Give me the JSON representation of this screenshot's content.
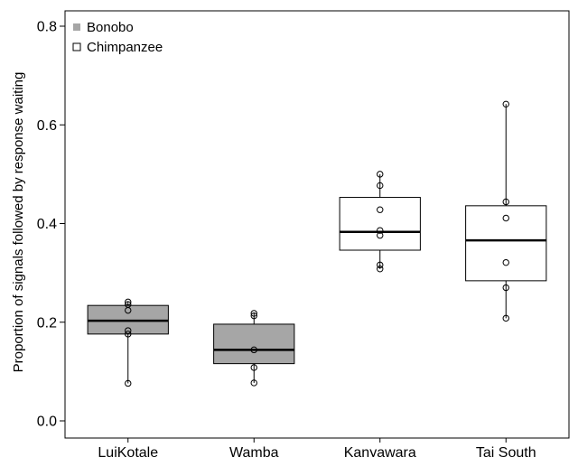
{
  "chart_data": {
    "type": "box",
    "ylabel": "Proportion of signals followed by response waiting",
    "xlabel": "",
    "ylim": [
      0,
      0.8
    ],
    "y_ticks": [
      0.0,
      0.2,
      0.4,
      0.6,
      0.8
    ],
    "y_tick_labels": [
      "0.0",
      "0.2",
      "0.4",
      "0.6",
      "0.8"
    ],
    "grid": false,
    "legend": {
      "placement": "top-left",
      "entries": [
        {
          "label": "Bonobo",
          "color": "#a6a6a6"
        },
        {
          "label": "Chimpanzee",
          "color": "#ffffff"
        }
      ]
    },
    "categories": [
      "LuiKotale",
      "Wamba",
      "Kanyawara",
      "Tai South"
    ],
    "boxes": [
      {
        "category": "LuiKotale",
        "species": "Bonobo",
        "fill": "#a6a6a6",
        "q1": 0.176,
        "median": 0.203,
        "q3": 0.234,
        "whisker_low": 0.076,
        "whisker_high": 0.241,
        "points": [
          0.076,
          0.176,
          0.183,
          0.224,
          0.236,
          0.241
        ]
      },
      {
        "category": "Wamba",
        "species": "Bonobo",
        "fill": "#a6a6a6",
        "q1": 0.116,
        "median": 0.144,
        "q3": 0.196,
        "whisker_low": 0.077,
        "whisker_high": 0.218,
        "points": [
          0.077,
          0.108,
          0.144,
          0.213,
          0.218
        ]
      },
      {
        "category": "Kanyawara",
        "species": "Chimpanzee",
        "fill": "#ffffff",
        "q1": 0.346,
        "median": 0.383,
        "q3": 0.453,
        "whisker_low": 0.308,
        "whisker_high": 0.5,
        "points": [
          0.308,
          0.316,
          0.376,
          0.386,
          0.428,
          0.477,
          0.5
        ]
      },
      {
        "category": "Tai South",
        "species": "Chimpanzee",
        "fill": "#ffffff",
        "q1": 0.284,
        "median": 0.366,
        "q3": 0.436,
        "whisker_low": 0.208,
        "whisker_high": 0.642,
        "points": [
          0.208,
          0.27,
          0.321,
          0.411,
          0.444,
          0.642
        ]
      }
    ]
  }
}
